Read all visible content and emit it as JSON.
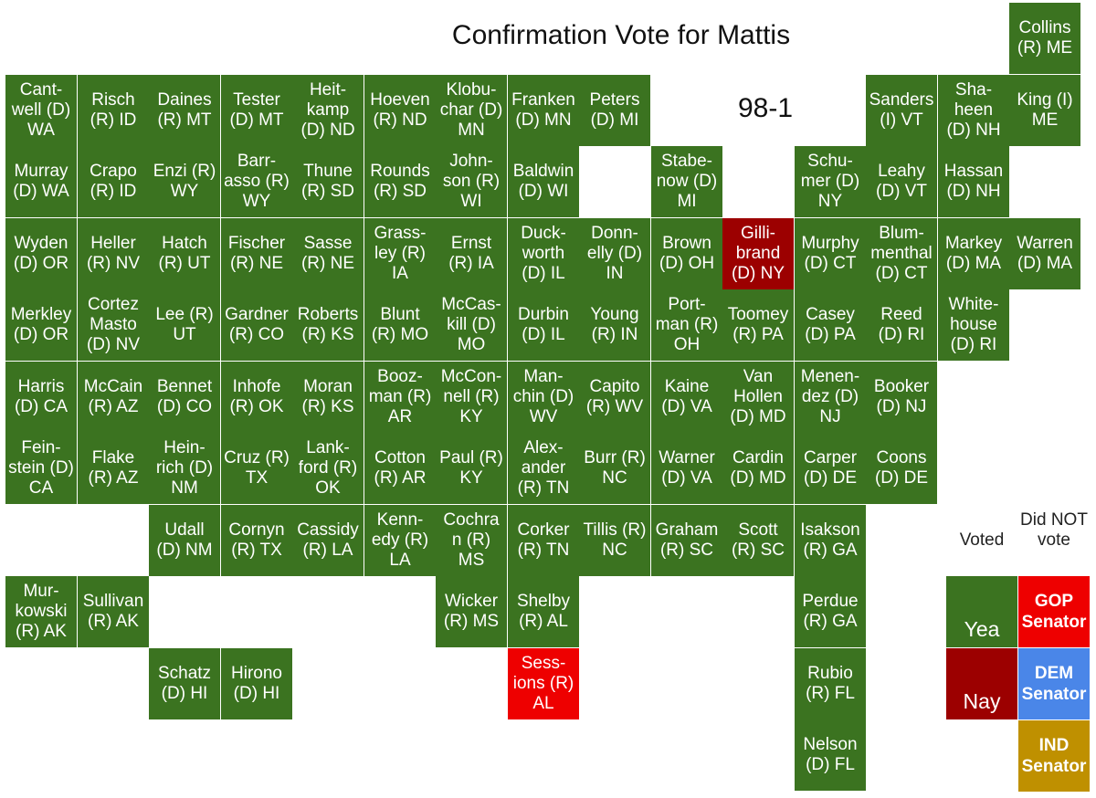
{
  "title": "Confirmation Vote for Mattis",
  "tally": "98-1",
  "colors": {
    "yea": "#3b7320",
    "nay": "#9c0000",
    "did_not_vote_gop": "#ee0000",
    "dem": "#4a86e8",
    "ind": "#bf9000"
  },
  "legend": {
    "voted_header": "Voted",
    "not_voted_header": "Did NOT vote",
    "yea": "Yea",
    "nay": "Nay",
    "gop": "GOP Senator",
    "dem": "DEM Senator",
    "ind": "IND Senator"
  },
  "senators": [
    {
      "label": "Collins (R) ME",
      "vote": "yea"
    },
    {
      "label": "Cant-well (D) WA",
      "vote": "yea"
    },
    {
      "label": "Risch (R) ID",
      "vote": "yea"
    },
    {
      "label": "Daines (R) MT",
      "vote": "yea"
    },
    {
      "label": "Tester (D) MT",
      "vote": "yea"
    },
    {
      "label": "Heit-kamp (D) ND",
      "vote": "yea"
    },
    {
      "label": "Hoeven (R) ND",
      "vote": "yea"
    },
    {
      "label": "Klobu-char (D) MN",
      "vote": "yea"
    },
    {
      "label": "Franken (D) MN",
      "vote": "yea"
    },
    {
      "label": "Peters (D) MI",
      "vote": "yea"
    },
    {
      "label": "Sanders (I) VT",
      "vote": "yea"
    },
    {
      "label": "Sha-heen (D) NH",
      "vote": "yea"
    },
    {
      "label": "King (I) ME",
      "vote": "yea"
    },
    {
      "label": "Murray (D) WA",
      "vote": "yea"
    },
    {
      "label": "Crapo (R) ID",
      "vote": "yea"
    },
    {
      "label": "Enzi (R) WY",
      "vote": "yea"
    },
    {
      "label": "Barr-asso (R) WY",
      "vote": "yea"
    },
    {
      "label": "Thune (R) SD",
      "vote": "yea"
    },
    {
      "label": "Rounds (R) SD",
      "vote": "yea"
    },
    {
      "label": "John-son (R) WI",
      "vote": "yea"
    },
    {
      "label": "Baldwin (D) WI",
      "vote": "yea"
    },
    {
      "label": "Stabe-now (D) MI",
      "vote": "yea"
    },
    {
      "label": "Schu-mer (D) NY",
      "vote": "yea"
    },
    {
      "label": "Leahy (D) VT",
      "vote": "yea"
    },
    {
      "label": "Hassan (D) NH",
      "vote": "yea"
    },
    {
      "label": "Wyden (D) OR",
      "vote": "yea"
    },
    {
      "label": "Heller (R) NV",
      "vote": "yea"
    },
    {
      "label": "Hatch (R) UT",
      "vote": "yea"
    },
    {
      "label": "Fischer (R) NE",
      "vote": "yea"
    },
    {
      "label": "Sasse (R) NE",
      "vote": "yea"
    },
    {
      "label": "Grass-ley (R) IA",
      "vote": "yea"
    },
    {
      "label": "Ernst (R) IA",
      "vote": "yea"
    },
    {
      "label": "Duck-worth (D) IL",
      "vote": "yea"
    },
    {
      "label": "Donn-elly (D) IN",
      "vote": "yea"
    },
    {
      "label": "Brown (D) OH",
      "vote": "yea"
    },
    {
      "label": "Gilli-brand (D) NY",
      "vote": "nay"
    },
    {
      "label": "Murphy (D) CT",
      "vote": "yea"
    },
    {
      "label": "Blum-menthal (D) CT",
      "vote": "yea"
    },
    {
      "label": "Markey (D) MA",
      "vote": "yea"
    },
    {
      "label": "Warren (D) MA",
      "vote": "yea"
    },
    {
      "label": "Merkley (D) OR",
      "vote": "yea"
    },
    {
      "label": "Cortez Masto (D) NV",
      "vote": "yea"
    },
    {
      "label": "Lee (R) UT",
      "vote": "yea"
    },
    {
      "label": "Gardner (R) CO",
      "vote": "yea"
    },
    {
      "label": "Roberts (R) KS",
      "vote": "yea"
    },
    {
      "label": "Blunt (R) MO",
      "vote": "yea"
    },
    {
      "label": "McCas-kill (D) MO",
      "vote": "yea"
    },
    {
      "label": "Durbin (D) IL",
      "vote": "yea"
    },
    {
      "label": "Young (R) IN",
      "vote": "yea"
    },
    {
      "label": "Port-man (R) OH",
      "vote": "yea"
    },
    {
      "label": "Toomey (R) PA",
      "vote": "yea"
    },
    {
      "label": "Casey (D) PA",
      "vote": "yea"
    },
    {
      "label": "Reed (D) RI",
      "vote": "yea"
    },
    {
      "label": "White-house (D) RI",
      "vote": "yea"
    },
    {
      "label": "Harris (D) CA",
      "vote": "yea"
    },
    {
      "label": "McCain (R) AZ",
      "vote": "yea"
    },
    {
      "label": "Bennet (D) CO",
      "vote": "yea"
    },
    {
      "label": "Inhofe (R) OK",
      "vote": "yea"
    },
    {
      "label": "Moran (R) KS",
      "vote": "yea"
    },
    {
      "label": "Booz-man (R) AR",
      "vote": "yea"
    },
    {
      "label": "McCon-nell (R) KY",
      "vote": "yea"
    },
    {
      "label": "Man-chin (D) WV",
      "vote": "yea"
    },
    {
      "label": "Capito (R) WV",
      "vote": "yea"
    },
    {
      "label": "Kaine (D) VA",
      "vote": "yea"
    },
    {
      "label": "Van Hollen (D) MD",
      "vote": "yea"
    },
    {
      "label": "Menen-dez (D) NJ",
      "vote": "yea"
    },
    {
      "label": "Booker (D) NJ",
      "vote": "yea"
    },
    {
      "label": "Fein-stein (D) CA",
      "vote": "yea"
    },
    {
      "label": "Flake (R) AZ",
      "vote": "yea"
    },
    {
      "label": "Hein-rich (D) NM",
      "vote": "yea"
    },
    {
      "label": "Cruz (R) TX",
      "vote": "yea"
    },
    {
      "label": "Lank-ford (R) OK",
      "vote": "yea"
    },
    {
      "label": "Cotton (R) AR",
      "vote": "yea"
    },
    {
      "label": "Paul (R) KY",
      "vote": "yea"
    },
    {
      "label": "Alex-ander (R) TN",
      "vote": "yea"
    },
    {
      "label": "Burr (R) NC",
      "vote": "yea"
    },
    {
      "label": "Warner (D) VA",
      "vote": "yea"
    },
    {
      "label": "Cardin (D) MD",
      "vote": "yea"
    },
    {
      "label": "Carper (D) DE",
      "vote": "yea"
    },
    {
      "label": "Coons (D) DE",
      "vote": "yea"
    },
    {
      "label": "Udall (D) NM",
      "vote": "yea"
    },
    {
      "label": "Cornyn (R) TX",
      "vote": "yea"
    },
    {
      "label": "Cassidy (R) LA",
      "vote": "yea"
    },
    {
      "label": "Kenn-edy (R) LA",
      "vote": "yea"
    },
    {
      "label": "Cochra n (R) MS",
      "vote": "yea"
    },
    {
      "label": "Corker (R) TN",
      "vote": "yea"
    },
    {
      "label": "Tillis (R) NC",
      "vote": "yea"
    },
    {
      "label": "Graham (R) SC",
      "vote": "yea"
    },
    {
      "label": "Scott (R) SC",
      "vote": "yea"
    },
    {
      "label": "Isakson (R) GA",
      "vote": "yea"
    },
    {
      "label": "Mur-kowski (R) AK",
      "vote": "yea"
    },
    {
      "label": "Sullivan (R) AK",
      "vote": "yea"
    },
    {
      "label": "Wicker (R) MS",
      "vote": "yea"
    },
    {
      "label": "Shelby (R) AL",
      "vote": "yea"
    },
    {
      "label": "Perdue (R) GA",
      "vote": "yea"
    },
    {
      "label": "Schatz (D) HI",
      "vote": "yea"
    },
    {
      "label": "Hirono (D) HI",
      "vote": "yea"
    },
    {
      "label": "Sess-ions (R) AL",
      "vote": "notvote"
    },
    {
      "label": "Rubio (R) FL",
      "vote": "yea"
    },
    {
      "label": "Nelson (D) FL",
      "vote": "yea"
    }
  ]
}
